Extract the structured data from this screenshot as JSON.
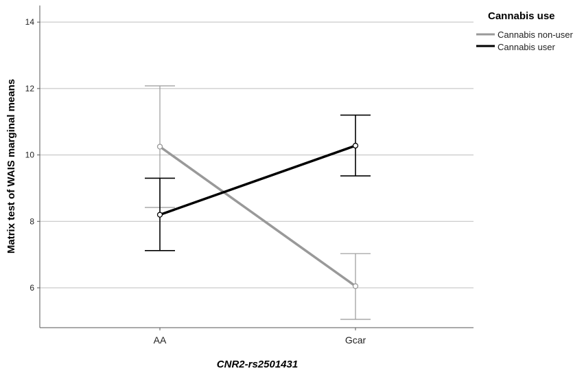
{
  "chart_data": {
    "type": "line",
    "xlabel": "CNR2-rs2501431",
    "ylabel": "Matrix test of WAIS marginal means",
    "categories": [
      "AA",
      "Gcar"
    ],
    "ylim": [
      4.8,
      14.5
    ],
    "yticks": [
      6,
      8,
      10,
      12,
      14
    ],
    "grid": true,
    "legend": {
      "title": "Cannabis use",
      "placement": "top-right"
    },
    "series": [
      {
        "name": "Cannabis non-user",
        "color": "#999999",
        "values": [
          10.25,
          6.05
        ],
        "err_low": [
          8.42,
          5.05
        ],
        "err_high": [
          12.08,
          7.03
        ]
      },
      {
        "name": "Cannabis user",
        "color": "#000000",
        "values": [
          8.2,
          10.28
        ],
        "err_low": [
          7.12,
          9.37
        ],
        "err_high": [
          9.3,
          11.2
        ]
      }
    ]
  }
}
